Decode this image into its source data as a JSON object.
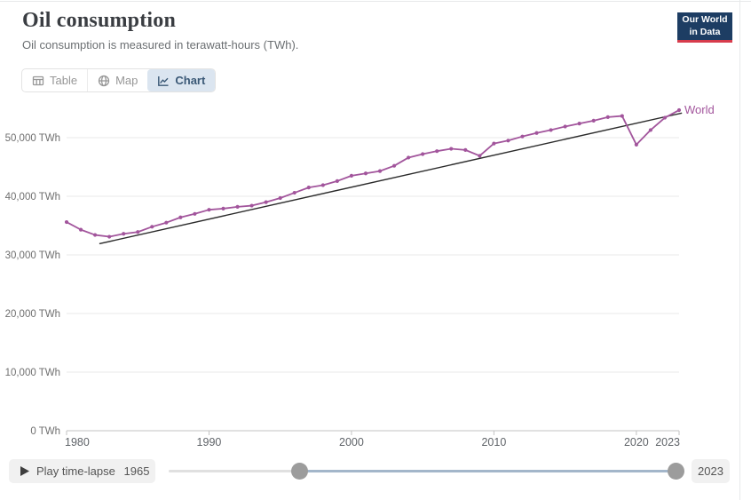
{
  "header": {
    "title": "Oil consumption",
    "subtitle": "Oil consumption is measured in terawatt-hours (TWh).",
    "logo": {
      "line1": "Our World",
      "line2": "in Data"
    }
  },
  "tabs": [
    {
      "label": "Table",
      "icon": "table-icon",
      "selected": false
    },
    {
      "label": "Map",
      "icon": "globe-icon",
      "selected": false
    },
    {
      "label": "Chart",
      "icon": "line-chart-icon",
      "selected": true
    }
  ],
  "chart_data": {
    "type": "line",
    "title": "Oil consumption",
    "unit": "TWh",
    "xlim": [
      1980,
      2023
    ],
    "ylim": [
      0,
      55000
    ],
    "grid": true,
    "grid_color": "#e9e9e9",
    "axis_color": "#c3c3c3",
    "x": [
      1980,
      1981,
      1982,
      1983,
      1984,
      1985,
      1986,
      1987,
      1988,
      1989,
      1990,
      1991,
      1992,
      1993,
      1994,
      1995,
      1996,
      1997,
      1998,
      1999,
      2000,
      2001,
      2002,
      2003,
      2004,
      2005,
      2006,
      2007,
      2008,
      2009,
      2010,
      2011,
      2012,
      2013,
      2014,
      2015,
      2016,
      2017,
      2018,
      2019,
      2020,
      2021,
      2022,
      2023
    ],
    "series": [
      {
        "name": "World",
        "color": "#a2559c",
        "values": [
          35600,
          34300,
          33400,
          33100,
          33600,
          33900,
          34800,
          35500,
          36400,
          37000,
          37700,
          37900,
          38200,
          38400,
          39000,
          39700,
          40600,
          41500,
          41900,
          42600,
          43500,
          43900,
          44300,
          45200,
          46600,
          47200,
          47700,
          48100,
          47900,
          46900,
          49000,
          49500,
          50200,
          50800,
          51300,
          51900,
          52400,
          52900,
          53500,
          53700,
          48800,
          51300,
          53400,
          54700
        ]
      }
    ],
    "trend_line": {
      "color": "#2b2b2b",
      "start": {
        "x": 1982.3,
        "y": 31900
      },
      "end": {
        "x": 2023.2,
        "y": 54200
      }
    },
    "y_ticks": [
      {
        "value": 0,
        "label": "0 TWh"
      },
      {
        "value": 10000,
        "label": "10,000 TWh"
      },
      {
        "value": 20000,
        "label": "20,000 TWh"
      },
      {
        "value": 30000,
        "label": "30,000 TWh"
      },
      {
        "value": 40000,
        "label": "40,000 TWh"
      },
      {
        "value": 50000,
        "label": "50,000 TWh"
      }
    ],
    "x_ticks": [
      {
        "value": 1980,
        "label": "1980"
      },
      {
        "value": 1990,
        "label": "1990"
      },
      {
        "value": 2000,
        "label": "2000"
      },
      {
        "value": 2010,
        "label": "2010"
      },
      {
        "value": 2020,
        "label": "2020"
      },
      {
        "value": 2023,
        "label": "2023"
      }
    ],
    "legend": "end-of-line-label"
  },
  "timeline": {
    "play_label": "Play time-lapse",
    "start_label": "1965",
    "end_label": "2023",
    "min": 1965,
    "max": 2023,
    "selected": [
      1980,
      2023
    ]
  },
  "colors": {
    "accent": "#a2559c",
    "logo_bg": "#1d3d63",
    "logo_red": "#d73c4c",
    "selected_tab_bg": "#dbe5f0",
    "slider_active": "#a3b6ca",
    "slider_handle": "#9c9c9c"
  }
}
